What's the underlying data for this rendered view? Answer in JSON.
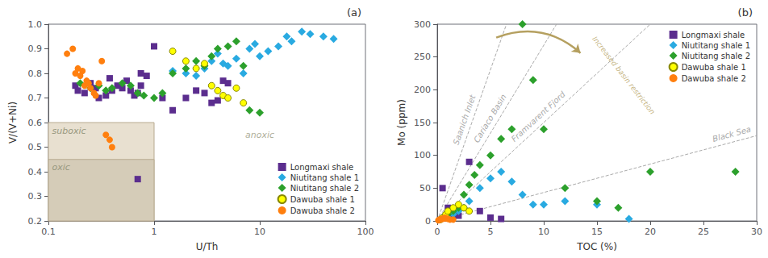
{
  "chart_data": [
    {
      "type": "scatter",
      "title": "(a)",
      "xlabel": "U/Th",
      "ylabel": "V/(V+Ni)",
      "log": "x",
      "xlim": [
        0.1,
        100
      ],
      "xticks": [
        0.1,
        1,
        10,
        100
      ],
      "ylim": [
        0.2,
        1.0
      ],
      "yticks": [
        0.2,
        0.3,
        0.4,
        0.5,
        0.6,
        0.7,
        0.8,
        0.9,
        {
          "value": 1.0,
          "label": "1.0"
        }
      ],
      "grid": false,
      "legend": "lower right",
      "series": [
        {
          "name": "Longmaxi shale",
          "color": "#5b2d8e",
          "marker": "square",
          "x": [
            0.18,
            0.19,
            0.22,
            0.25,
            0.28,
            0.3,
            0.35,
            0.38,
            0.4,
            0.45,
            0.5,
            0.55,
            0.6,
            0.65,
            0.7,
            0.75,
            0.85,
            1.0,
            1.2,
            1.5,
            2.0,
            2.5,
            3.0,
            3.5,
            4.0,
            4.5,
            5.0,
            0.75,
            0.7
          ],
          "y": [
            0.75,
            0.73,
            0.72,
            0.76,
            0.74,
            0.7,
            0.71,
            0.78,
            0.73,
            0.75,
            0.74,
            0.77,
            0.73,
            0.71,
            0.72,
            0.75,
            0.79,
            0.91,
            0.7,
            0.65,
            0.7,
            0.73,
            0.72,
            0.68,
            0.69,
            0.77,
            0.76,
            0.8,
            0.37
          ]
        },
        {
          "name": "Niutitang shale 1",
          "color": "#29aae1",
          "marker": "diamond",
          "x": [
            1.5,
            2.0,
            2.5,
            3.0,
            3.5,
            4.0,
            4.5,
            5.0,
            6.0,
            7.0,
            8.0,
            9.0,
            10.0,
            12.0,
            15.0,
            18.0,
            20.0,
            25.0,
            30.0,
            40.0,
            50.0
          ],
          "y": [
            0.81,
            0.8,
            0.79,
            0.82,
            0.85,
            0.88,
            0.84,
            0.83,
            0.86,
            0.8,
            0.9,
            0.92,
            0.87,
            0.89,
            0.91,
            0.95,
            0.93,
            0.97,
            0.96,
            0.95,
            0.94
          ]
        },
        {
          "name": "Niutitang shale 2",
          "color": "#2ca02c",
          "marker": "diamond",
          "x": [
            0.2,
            0.25,
            0.3,
            0.35,
            0.4,
            0.5,
            0.6,
            0.7,
            0.8,
            1.0,
            1.2,
            1.5,
            2.0,
            2.5,
            3.0,
            3.5,
            4.0,
            5.0,
            6.0,
            7.0,
            8.0,
            10.0
          ],
          "y": [
            0.76,
            0.74,
            0.75,
            0.73,
            0.74,
            0.76,
            0.75,
            0.72,
            0.71,
            0.7,
            0.72,
            0.8,
            0.82,
            0.85,
            0.83,
            0.87,
            0.9,
            0.91,
            0.93,
            0.83,
            0.65,
            0.64
          ]
        },
        {
          "name": "Dawuba shale 1",
          "color": "#ffff00",
          "edge_color": "#888800",
          "marker": "circle",
          "x": [
            1.5,
            2.0,
            2.5,
            3.0,
            3.5,
            4.0,
            4.5,
            5.0,
            6.0,
            7.0
          ],
          "y": [
            0.89,
            0.85,
            0.82,
            0.84,
            0.75,
            0.73,
            0.71,
            0.7,
            0.74,
            0.68
          ]
        },
        {
          "name": "Dawuba shale 2",
          "color": "#ff7f0e",
          "marker": "circle",
          "x": [
            0.15,
            0.17,
            0.18,
            0.19,
            0.2,
            0.21,
            0.22,
            0.23,
            0.24,
            0.25,
            0.27,
            0.28,
            0.3,
            0.32,
            0.35,
            0.38,
            0.4
          ],
          "y": [
            0.88,
            0.9,
            0.8,
            0.82,
            0.79,
            0.81,
            0.75,
            0.77,
            0.76,
            0.74,
            0.72,
            0.71,
            0.76,
            0.85,
            0.55,
            0.53,
            0.5
          ]
        }
      ],
      "regions": [
        {
          "text": "suboxic",
          "x": [
            0.1,
            1
          ],
          "y": [
            0.2,
            0.6
          ],
          "color": "#e8e0d0",
          "edge_color": "#b8aa90",
          "text_color": "#999980"
        },
        {
          "text": "oxic",
          "x": [
            0.1,
            1
          ],
          "y": [
            0.2,
            0.45
          ],
          "color": "#d5ccb8",
          "edge_color": "#b8aa90",
          "text_color": "#999980"
        }
      ],
      "annotations": [
        {
          "text": "anoxic",
          "x": 10,
          "y": 0.55,
          "color": "#999980"
        }
      ]
    },
    {
      "type": "scatter",
      "title": "(b)",
      "xlabel": "TOC (%)",
      "ylabel": "Mo (ppm)",
      "xlim": [
        0,
        30
      ],
      "xticks": [
        0,
        5,
        10,
        15,
        20,
        25,
        30
      ],
      "ylim": [
        0,
        300
      ],
      "yticks": [
        0,
        50,
        100,
        150,
        200,
        250,
        300
      ],
      "grid": false,
      "legend": "upper right",
      "series": [
        {
          "name": "Longmaxi shale",
          "color": "#5b2d8e",
          "marker": "square",
          "x": [
            0.5,
            1.0,
            1.5,
            2.0,
            3.0,
            4.0,
            5.0,
            6.0
          ],
          "y": [
            50,
            20,
            10,
            8,
            90,
            15,
            5,
            3
          ]
        },
        {
          "name": "Niutitang shale 1",
          "color": "#29aae1",
          "marker": "diamond",
          "x": [
            1.0,
            1.5,
            2.0,
            2.5,
            3.0,
            4.0,
            5.0,
            6.0,
            7.0,
            8.0,
            9.0,
            10.0,
            12.0,
            15.0,
            18.0
          ],
          "y": [
            5,
            10,
            15,
            20,
            30,
            50,
            65,
            75,
            60,
            40,
            25,
            25,
            30,
            25,
            3
          ]
        },
        {
          "name": "Niutitang shale 2",
          "color": "#2ca02c",
          "marker": "diamond",
          "x": [
            0.5,
            1.0,
            1.5,
            2.0,
            2.5,
            3.0,
            3.5,
            4.0,
            5.0,
            6.0,
            7.0,
            8.0,
            9.0,
            10.0,
            12.0,
            15.0,
            17.0,
            20.0,
            28.0
          ],
          "y": [
            5,
            10,
            15,
            20,
            40,
            55,
            70,
            85,
            100,
            125,
            140,
            300,
            215,
            140,
            50,
            30,
            20,
            75,
            75
          ]
        },
        {
          "name": "Dawuba shale 1",
          "color": "#ffff00",
          "edge_color": "#888800",
          "marker": "circle",
          "x": [
            0.3,
            0.5,
            0.8,
            1.0,
            1.5,
            2.0,
            2.5,
            3.0
          ],
          "y": [
            2,
            5,
            10,
            15,
            20,
            25,
            20,
            15
          ]
        },
        {
          "name": "Dawuba shale 2",
          "color": "#ff7f0e",
          "marker": "circle",
          "x": [
            0.1,
            0.2,
            0.3,
            0.4,
            0.5,
            0.6,
            0.7,
            0.8,
            1.0,
            1.2,
            1.5
          ],
          "y": [
            1,
            2,
            2,
            3,
            3,
            4,
            5,
            4,
            3,
            2,
            2
          ]
        }
      ],
      "reference_lines": [
        {
          "text": "Saanich Inlet",
          "x": [
            0,
            6.5
          ],
          "y": [
            0,
            300
          ],
          "color": "#aaaaaa",
          "line_style": "dashed"
        },
        {
          "text": "Cariaco Basin",
          "x": [
            0,
            11.2
          ],
          "y": [
            0,
            300
          ],
          "color": "#aaaaaa",
          "line_style": "dashed"
        },
        {
          "text": "Framvarent Fjord",
          "x": [
            0,
            20.0
          ],
          "y": [
            0,
            300
          ],
          "color": "#aaaaaa",
          "line_style": "dashed"
        },
        {
          "text": "Black Sea",
          "x": [
            0,
            30
          ],
          "y": [
            0,
            130
          ],
          "color": "#aaaaaa",
          "line_style": "dashed"
        }
      ],
      "arrow": {
        "text": "Increased basin restriction",
        "from": [
          5.54,
          279.5
        ],
        "to": [
          13.45,
          256.1
        ],
        "x": 17.5,
        "y": 222,
        "color": "#b5a060"
      }
    }
  ]
}
